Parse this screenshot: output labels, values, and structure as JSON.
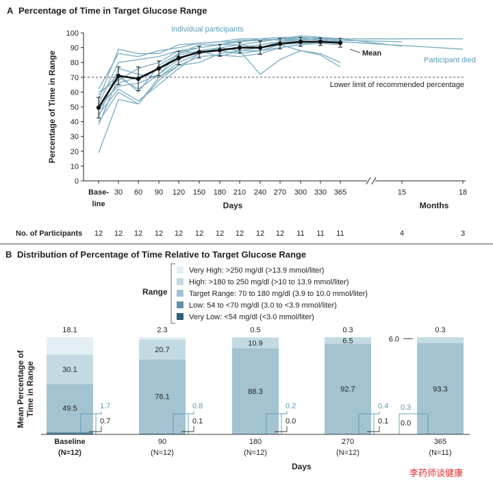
{
  "chart_data": [
    {
      "panel": "A",
      "title": "Percentage of Time in Target Glucose Range",
      "type": "line",
      "ylabel": "Percentage of Time in Range",
      "xlabel_days": "Days",
      "xlabel_months": "Months",
      "ylim": [
        0,
        100
      ],
      "yticks": [
        0,
        10,
        20,
        30,
        40,
        50,
        60,
        70,
        80,
        90,
        100
      ],
      "x_categories": [
        "Base-",
        "30",
        "60",
        "90",
        "120",
        "150",
        "180",
        "210",
        "240",
        "270",
        "300",
        "330",
        "365",
        "15",
        "18"
      ],
      "baseline_tick_line2": "line",
      "reference_line": {
        "y": 70,
        "label": "Lower limit of recommended percentage"
      },
      "annotations": {
        "individual": "Individual participants",
        "mean_label": "Mean",
        "died": "Participant died"
      },
      "participants_label": "No. of Participants",
      "participants": [
        "12",
        "12",
        "12",
        "12",
        "12",
        "12",
        "12",
        "12",
        "12",
        "12",
        "11",
        "11",
        "11",
        "4",
        "3"
      ],
      "mean_series": {
        "name": "Mean",
        "x": [
          0,
          1,
          2,
          3,
          4,
          5,
          6,
          7,
          8,
          9,
          10,
          11,
          12
        ],
        "y": [
          49.5,
          71,
          69,
          76,
          83,
          87,
          88.3,
          90,
          90,
          92.7,
          94,
          94,
          93.3
        ],
        "err": [
          7,
          6,
          8,
          5,
          4.5,
          4,
          4,
          3.5,
          4.5,
          3.5,
          3,
          2.5,
          3
        ]
      },
      "individual_series": [
        {
          "x": [
            0,
            1,
            2,
            3,
            4,
            5,
            6,
            7,
            8,
            9,
            10,
            11,
            12
          ],
          "y": [
            19,
            55,
            52,
            68,
            78,
            80,
            86,
            88,
            72,
            82,
            88,
            86,
            80
          ]
        },
        {
          "x": [
            0,
            1,
            2,
            3,
            4,
            5,
            6,
            7,
            8,
            9,
            10,
            11,
            12,
            14
          ],
          "y": [
            45,
            62,
            54,
            65,
            76,
            86,
            88,
            90,
            92,
            94,
            96,
            95,
            94,
            89
          ]
        },
        {
          "x": [
            0,
            1,
            2,
            3,
            4,
            5,
            6,
            7,
            8,
            9,
            10,
            11,
            12,
            13
          ],
          "y": [
            58,
            72,
            60,
            78,
            86,
            92,
            92,
            94,
            96,
            95,
            96,
            95,
            96,
            96
          ]
        },
        {
          "x": [
            0,
            1,
            2,
            3,
            4,
            5,
            6,
            7,
            8,
            9,
            10,
            11,
            12,
            14
          ],
          "y": [
            52,
            80,
            82,
            84,
            88,
            90,
            92,
            95,
            95,
            96,
            97,
            96,
            96,
            96
          ]
        },
        {
          "x": [
            0,
            1,
            2,
            3,
            4,
            5,
            6,
            7,
            8,
            9,
            10,
            11,
            12
          ],
          "y": [
            48,
            66,
            70,
            76,
            85,
            88,
            90,
            88,
            90,
            92,
            93,
            94,
            94
          ]
        },
        {
          "x": [
            0,
            1,
            2,
            3,
            4,
            5,
            6,
            7,
            8,
            9,
            10,
            11,
            12
          ],
          "y": [
            38,
            70,
            62,
            72,
            86,
            90,
            92,
            92,
            94,
            96,
            98,
            97,
            96
          ]
        },
        {
          "x": [
            0,
            1,
            2,
            3,
            4,
            5,
            6,
            7,
            8,
            9,
            10,
            11,
            12,
            13
          ],
          "y": [
            62,
            86,
            84,
            88,
            90,
            93,
            94,
            96,
            96,
            97,
            97,
            96,
            96,
            91
          ]
        },
        {
          "x": [
            0,
            1,
            2,
            3,
            4,
            5,
            6,
            7,
            8,
            9,
            10,
            11,
            12
          ],
          "y": [
            40,
            60,
            52,
            70,
            78,
            84,
            85,
            84,
            86,
            90,
            92,
            93,
            92
          ]
        },
        {
          "x": [
            0,
            1,
            2,
            3,
            4,
            5,
            6,
            7,
            8,
            9,
            10,
            11,
            12
          ],
          "y": [
            55,
            89,
            86,
            86,
            92,
            93,
            94,
            94,
            95,
            96,
            96,
            97,
            96
          ]
        },
        {
          "x": [
            0,
            1,
            2,
            3,
            4,
            5,
            6,
            7,
            8,
            9,
            10,
            11,
            12
          ],
          "y": [
            60,
            68,
            76,
            80,
            88,
            86,
            88,
            86,
            88,
            90,
            92,
            94,
            95
          ]
        },
        {
          "x": [
            0,
            1,
            2,
            3,
            4,
            5,
            6,
            7,
            8,
            9,
            10,
            11,
            12,
            13
          ],
          "y": [
            43,
            76,
            72,
            70,
            80,
            86,
            90,
            92,
            90,
            94,
            95,
            96,
            95,
            94
          ]
        },
        {
          "x": [
            0,
            1,
            2,
            3,
            4,
            5,
            6,
            7,
            8,
            9,
            10,
            11,
            12
          ],
          "y": [
            51,
            64,
            66,
            72,
            82,
            88,
            84,
            88,
            88,
            92,
            88,
            85,
            77
          ]
        }
      ]
    },
    {
      "panel": "B",
      "title": "Distribution of Percentage of Time Relative to Target Glucose Range",
      "type": "bar",
      "stacked": true,
      "ylabel_line1": "Mean Percentage of",
      "ylabel_line2": "Time in Range",
      "xlabel": "Days",
      "legend_title": "Range",
      "legend": [
        {
          "name": "Very High: >250 mg/dl (>13.9 mmol/liter)",
          "color": "#e3eff4"
        },
        {
          "name": "High: >180 to 250 mg/dl (>10 to 13.9 mmol/liter)",
          "color": "#c4dae3"
        },
        {
          "name": "Target Range: 70 to 180 mg/dl (3.9 to 10.0 mmol/liter)",
          "color": "#a3c3d1"
        },
        {
          "name": "Low: 54 to <70 mg/dl (3.0 to <3.9 mmol/liter)",
          "color": "#5f93a9"
        },
        {
          "name": "Very Low: <54 mg/dl (<3.0 mmol/liter)",
          "color": "#2e6178"
        }
      ],
      "categories": [
        {
          "label": "Baseline",
          "n": "(N=12)",
          "bold": true
        },
        {
          "label": "90",
          "n": "(N=12)",
          "bold": false
        },
        {
          "label": "180",
          "n": "(N=12)",
          "bold": false
        },
        {
          "label": "270",
          "n": "(N=12)",
          "bold": false
        },
        {
          "label": "365",
          "n": "(N=11)",
          "bold": false
        }
      ],
      "series": [
        {
          "name": "Very Low",
          "values": [
            0.7,
            0.1,
            0.0,
            0.1,
            0.0
          ],
          "labels": [
            "0.7",
            "0.1",
            "0.0",
            "0.1",
            "0.0"
          ]
        },
        {
          "name": "Low",
          "values": [
            1.7,
            0.8,
            0.2,
            0.4,
            0.3
          ],
          "labels": [
            "1.7",
            "0.8",
            "0.2",
            "0.4",
            "0.3"
          ]
        },
        {
          "name": "Target Range",
          "values": [
            49.5,
            76.1,
            88.3,
            92.7,
            93.3
          ],
          "labels": [
            "49.5",
            "76.1",
            "88.3",
            "92.7",
            "93.3"
          ]
        },
        {
          "name": "High",
          "values": [
            30.1,
            20.7,
            10.9,
            6.5,
            6.0
          ],
          "labels": [
            "30.1",
            "20.7",
            "10.9",
            "6.5",
            "6.0"
          ]
        },
        {
          "name": "Very High",
          "values": [
            18.1,
            2.3,
            0.5,
            0.3,
            0.3
          ],
          "labels": [
            "18.1",
            "2.3",
            "0.5",
            "0.3",
            "0.3"
          ]
        }
      ]
    }
  ],
  "watermark": "李药师谈健康"
}
